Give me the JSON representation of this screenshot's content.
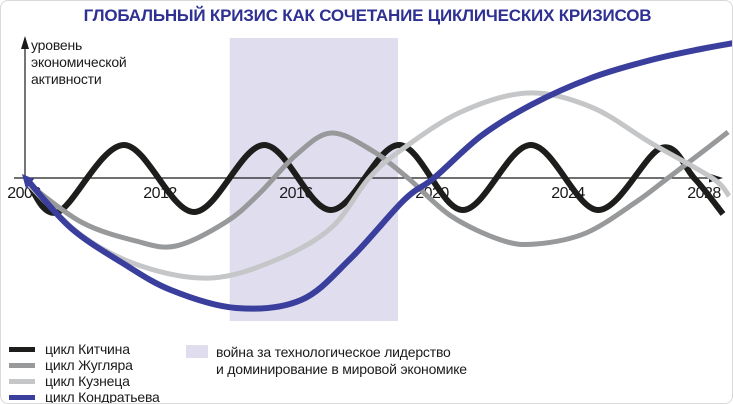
{
  "title": "ГЛОБАЛЬНЫЙ КРИЗИС КАК СОЧЕТАНИЕ ЦИКЛИЧЕСКИХ КРИЗИСОВ",
  "colors": {
    "title": "#2f3192",
    "axis": "#1a1a1a",
    "band": "#e0deee",
    "kitchin": "#1d1d1b",
    "juglar": "#97999b",
    "kuznets": "#c5c6c8",
    "kondratiev": "#3a3e9c"
  },
  "chart_data": {
    "type": "line",
    "title": "ГЛОБАЛЬНЫЙ КРИЗИС КАК СОЧЕТАНИЕ ЦИКЛИЧЕСКИХ КРИЗИСОВ",
    "xlabel": "",
    "ylabel": "уровень экономической активности",
    "ylabel_lines": [
      "уровень",
      "экономической",
      "активности"
    ],
    "x_ticks": [
      2008,
      2012,
      2016,
      2020,
      2024,
      2028
    ],
    "xlim": [
      2008,
      2029
    ],
    "ylim_units": [
      -1.4,
      1.45
    ],
    "grid": false,
    "legend_position": "bottom-left",
    "band": {
      "label": "война за технологическое лидерство и доминирование в мировой экономике",
      "from": 2014.05,
      "to": 2019.0,
      "color": "#e0deee"
    },
    "series": [
      {
        "key": "kitchin",
        "name": "цикл Китчина",
        "color": "#1d1d1b",
        "width": 6,
        "points": [
          [
            2008.12,
            -0.05
          ],
          [
            2009.0,
            -0.34
          ],
          [
            2010.94,
            0.33
          ],
          [
            2013.0,
            -0.34
          ],
          [
            2015.06,
            0.33
          ],
          [
            2017.03,
            -0.32
          ],
          [
            2019.03,
            0.33
          ],
          [
            2020.91,
            -0.32
          ],
          [
            2022.91,
            0.33
          ],
          [
            2024.88,
            -0.32
          ],
          [
            2026.74,
            0.3
          ],
          [
            2027.71,
            0.0
          ],
          [
            2028.56,
            -0.36
          ]
        ]
      },
      {
        "key": "juglar",
        "name": "цикл Жугляра",
        "color": "#97999b",
        "width": 5,
        "points": [
          [
            2008.06,
            -0.04
          ],
          [
            2009.68,
            -0.44
          ],
          [
            2011.29,
            -0.63
          ],
          [
            2012.47,
            -0.68
          ],
          [
            2013.94,
            -0.44
          ],
          [
            2014.91,
            -0.16
          ],
          [
            2016.0,
            0.23
          ],
          [
            2017.03,
            0.45
          ],
          [
            2018.21,
            0.28
          ],
          [
            2019.29,
            0.0
          ],
          [
            2020.56,
            -0.38
          ],
          [
            2022.03,
            -0.62
          ],
          [
            2023.06,
            -0.66
          ],
          [
            2024.53,
            -0.55
          ],
          [
            2026.0,
            -0.24
          ],
          [
            2026.94,
            0.0
          ],
          [
            2027.91,
            0.25
          ],
          [
            2028.71,
            0.46
          ]
        ]
      },
      {
        "key": "kuznets",
        "name": "цикл Кузнеца",
        "color": "#c5c6c8",
        "width": 5,
        "points": [
          [
            2008.12,
            -0.06
          ],
          [
            2009.68,
            -0.57
          ],
          [
            2011.44,
            -0.88
          ],
          [
            2013.5,
            -1.0
          ],
          [
            2015.41,
            -0.82
          ],
          [
            2017.03,
            -0.5
          ],
          [
            2018.15,
            0.0
          ],
          [
            2019.09,
            0.28
          ],
          [
            2020.85,
            0.66
          ],
          [
            2022.82,
            0.85
          ],
          [
            2024.68,
            0.71
          ],
          [
            2026.44,
            0.35
          ],
          [
            2028.24,
            0.0
          ],
          [
            2028.74,
            -0.18
          ]
        ]
      },
      {
        "key": "kondratiev",
        "name": "цикл Кондратьева",
        "color": "#3a3e9c",
        "width": 6,
        "points": [
          [
            2008.15,
            -0.04
          ],
          [
            2009.38,
            -0.5
          ],
          [
            2010.85,
            -0.84
          ],
          [
            2012.32,
            -1.12
          ],
          [
            2014.24,
            -1.3
          ],
          [
            2016.15,
            -1.22
          ],
          [
            2017.62,
            -0.8
          ],
          [
            2019.18,
            -0.22
          ],
          [
            2020.06,
            0.0
          ],
          [
            2021.44,
            0.42
          ],
          [
            2022.91,
            0.73
          ],
          [
            2024.68,
            1.0
          ],
          [
            2026.44,
            1.18
          ],
          [
            2027.91,
            1.29
          ],
          [
            2028.88,
            1.35
          ]
        ]
      }
    ]
  },
  "legend": {
    "items": [
      {
        "key": "kitchin",
        "label": "цикл Китчина",
        "color": "#1d1d1b"
      },
      {
        "key": "juglar",
        "label": "цикл Жугляра",
        "color": "#97999b"
      },
      {
        "key": "kuznets",
        "label": "цикл Кузнеца",
        "color": "#c5c6c8"
      },
      {
        "key": "kondratiev",
        "label": "цикл Кондратьева",
        "color": "#3a3e9c"
      }
    ],
    "band": {
      "lines": [
        "война за технологическое лидерство",
        "и доминирование в мировой экономике"
      ],
      "color": "#e0deee"
    }
  }
}
